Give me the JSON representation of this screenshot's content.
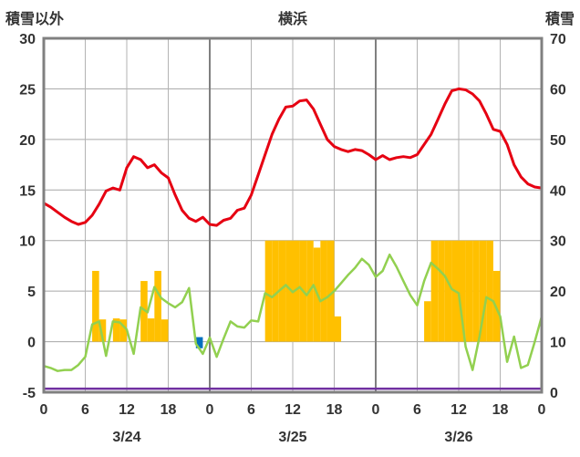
{
  "header": {
    "left_axis_title": "積雪以外",
    "title": "横浜",
    "right_axis_title": "積雪"
  },
  "colors": {
    "red_line": "#e60012",
    "green_line": "#92d050",
    "orange_bar": "#ffc000",
    "blue_bar": "#0070c0",
    "purple_line": "#7030a0",
    "grid_minor": "#b3b3b3",
    "grid_major": "#808080",
    "gridline_h": "#a6a6a6",
    "plot_border": "#808080",
    "text": "#333333"
  },
  "chart_data": {
    "type": "line",
    "title": "横浜",
    "left_axis": {
      "label": "積雪以外",
      "min": -5,
      "max": 30,
      "ticks": [
        30,
        25,
        20,
        15,
        10,
        5,
        0,
        -5
      ]
    },
    "right_axis": {
      "label": "積雪",
      "min": 0,
      "max": 70,
      "ticks": [
        70,
        60,
        50,
        40,
        30,
        20,
        10,
        0
      ]
    },
    "x_axis": {
      "hours_total": 72,
      "tick_step": 6,
      "tick_labels": [
        "0",
        "6",
        "12",
        "18",
        "0",
        "6",
        "12",
        "18",
        "0",
        "6",
        "12",
        "18",
        "0"
      ],
      "day_labels": [
        "3/24",
        "3/25",
        "3/26"
      ],
      "day_label_hours": [
        12,
        36,
        60
      ]
    },
    "grid": true,
    "legend": false,
    "series": [
      {
        "name": "red_line",
        "type": "line",
        "axis": "left",
        "values": [
          13.7,
          13.3,
          12.8,
          12.3,
          11.9,
          11.6,
          11.8,
          12.5,
          13.6,
          14.9,
          15.2,
          15.0,
          17.2,
          18.3,
          18.0,
          17.2,
          17.5,
          16.7,
          16.2,
          14.5,
          13.0,
          12.2,
          11.9,
          12.3,
          11.6,
          11.5,
          12.0,
          12.2,
          13.0,
          13.2,
          14.5,
          16.5,
          18.5,
          20.5,
          22.0,
          23.2,
          23.3,
          23.8,
          23.9,
          23.0,
          21.5,
          20.0,
          19.3,
          19.0,
          18.8,
          19.0,
          18.9,
          18.5,
          18.0,
          18.4,
          18.0,
          18.2,
          18.3,
          18.2,
          18.5,
          19.5,
          20.5,
          22.0,
          23.5,
          24.8,
          25.0,
          24.9,
          24.5,
          23.8,
          22.5,
          21.0,
          20.8,
          19.5,
          17.5,
          16.3,
          15.6,
          15.3,
          15.2
        ]
      },
      {
        "name": "green_line",
        "type": "line",
        "axis": "left",
        "values": [
          -2.4,
          -2.6,
          -2.9,
          -2.8,
          -2.8,
          -2.3,
          -1.5,
          1.7,
          2.0,
          -1.4,
          2.0,
          1.9,
          1.2,
          -1.2,
          3.4,
          2.9,
          5.4,
          4.3,
          3.8,
          3.4,
          3.9,
          5.3,
          -0.2,
          -1.2,
          0.4,
          -1.5,
          0.3,
          2.0,
          1.5,
          1.4,
          2.1,
          2.0,
          4.8,
          4.4,
          5.0,
          5.6,
          4.9,
          5.4,
          4.6,
          5.6,
          4.0,
          4.4,
          5.0,
          5.8,
          6.6,
          7.3,
          8.2,
          7.6,
          6.4,
          7.0,
          8.6,
          7.4,
          6.0,
          4.6,
          3.6,
          6.0,
          7.8,
          7.2,
          6.5,
          5.2,
          4.8,
          -0.5,
          -2.8,
          0.5,
          4.4,
          4.0,
          2.5,
          -2.0,
          0.5,
          -2.6,
          -2.3,
          0.0,
          2.5
        ]
      },
      {
        "name": "orange_bars",
        "type": "bar",
        "axis": "left",
        "points": [
          {
            "hour": 7,
            "value": 7.0
          },
          {
            "hour": 8,
            "value": 2.2
          },
          {
            "hour": 10,
            "value": 2.3
          },
          {
            "hour": 11,
            "value": 2.2
          },
          {
            "hour": 14,
            "value": 6.0
          },
          {
            "hour": 15,
            "value": 2.3
          },
          {
            "hour": 16,
            "value": 7.0
          },
          {
            "hour": 17,
            "value": 2.2
          },
          {
            "hour": 32,
            "value": 10
          },
          {
            "hour": 33,
            "value": 10
          },
          {
            "hour": 34,
            "value": 10
          },
          {
            "hour": 35,
            "value": 10
          },
          {
            "hour": 36,
            "value": 10
          },
          {
            "hour": 37,
            "value": 10
          },
          {
            "hour": 38,
            "value": 10
          },
          {
            "hour": 39,
            "value": 9.3
          },
          {
            "hour": 40,
            "value": 10
          },
          {
            "hour": 41,
            "value": 10
          },
          {
            "hour": 42,
            "value": 2.5
          },
          {
            "hour": 55,
            "value": 4.0
          },
          {
            "hour": 56,
            "value": 10
          },
          {
            "hour": 57,
            "value": 10
          },
          {
            "hour": 58,
            "value": 10
          },
          {
            "hour": 59,
            "value": 10
          },
          {
            "hour": 60,
            "value": 10
          },
          {
            "hour": 61,
            "value": 10
          },
          {
            "hour": 62,
            "value": 10
          },
          {
            "hour": 63,
            "value": 10
          },
          {
            "hour": 64,
            "value": 10
          },
          {
            "hour": 65,
            "value": 7.0
          }
        ]
      },
      {
        "name": "blue_bar",
        "type": "bar",
        "axis": "left",
        "points": [
          {
            "hour": 22,
            "value": 1.0
          }
        ]
      },
      {
        "name": "purple_line",
        "type": "constant-line",
        "axis": "right",
        "value": 0
      }
    ]
  }
}
